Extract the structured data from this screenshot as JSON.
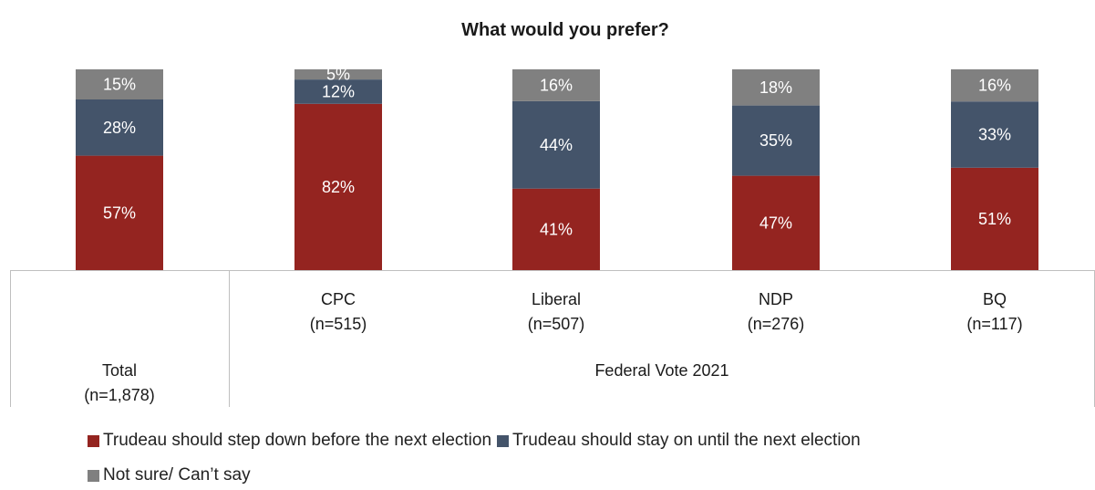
{
  "chart_data": {
    "type": "bar",
    "stacked": true,
    "title": "What would you prefer?",
    "categories": [
      {
        "label": "Total",
        "n": "(n=1,878)"
      },
      {
        "label": "CPC",
        "n": "(n=515)"
      },
      {
        "label": "Liberal",
        "n": "(n=507)"
      },
      {
        "label": "NDP",
        "n": "(n=276)"
      },
      {
        "label": "BQ",
        "n": "(n=117)"
      }
    ],
    "group_label": "Federal Vote 2021",
    "series": [
      {
        "name": "Trudeau should step down before the next election",
        "color": "#942420",
        "values": [
          57,
          82,
          41,
          47,
          51
        ],
        "labels": [
          "57%",
          "82%",
          "41%",
          "47%",
          "51%"
        ]
      },
      {
        "name": "Trudeau should stay on until the next election",
        "color": "#44546a",
        "values": [
          28,
          12,
          44,
          35,
          33
        ],
        "labels": [
          "28%",
          "12%",
          "44%",
          "35%",
          "33%"
        ]
      },
      {
        "name": "Not sure/ Can’t say",
        "color": "#808080",
        "values": [
          15,
          5,
          16,
          18,
          16
        ],
        "labels": [
          "15%",
          "5%",
          "16%",
          "18%",
          "16%"
        ]
      }
    ],
    "ylim": [
      0,
      100
    ],
    "grid": false,
    "legend_position": "bottom"
  }
}
